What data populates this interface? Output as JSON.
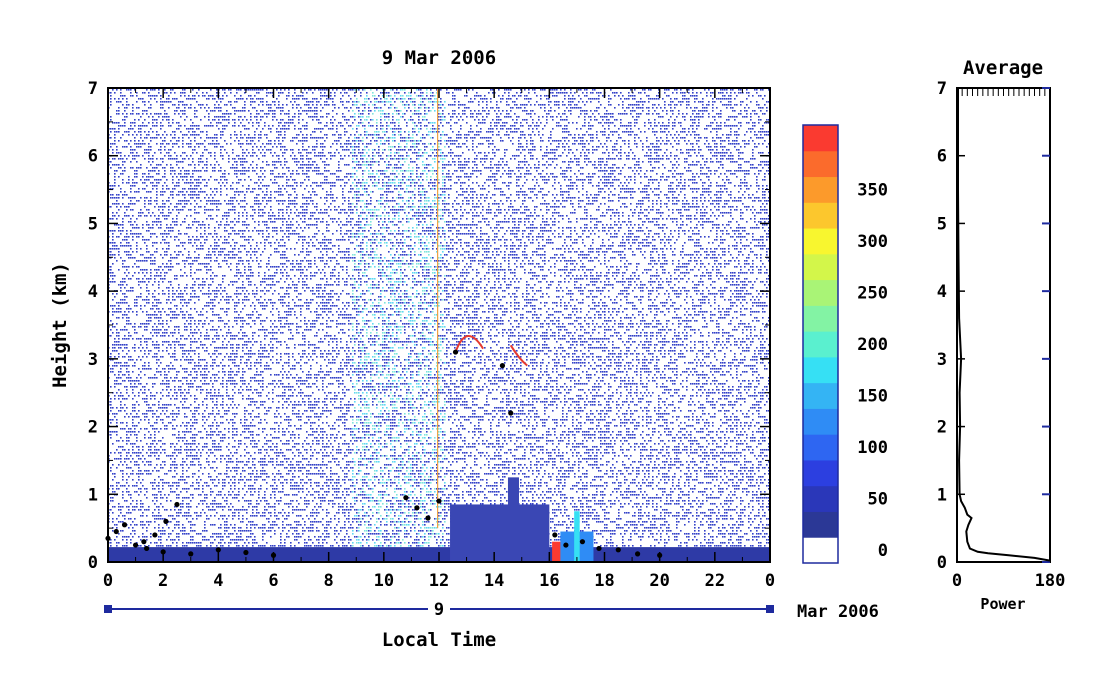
{
  "chart_data": [
    {
      "type": "heatmap",
      "title": "9 Mar 2006",
      "xlabel": "Local Time",
      "ylabel": "Height (km)",
      "xlim": [
        0,
        24
      ],
      "ylim": [
        0,
        7
      ],
      "x_ticks": [
        "0",
        "2",
        "4",
        "6",
        "8",
        "10",
        "12",
        "14",
        "16",
        "18",
        "20",
        "22",
        "0"
      ],
      "y_ticks": [
        "0",
        "1",
        "2",
        "3",
        "4",
        "5",
        "6",
        "7"
      ],
      "date_axis": {
        "day_label": "9",
        "month_label": "Mar 2006"
      },
      "colorbar": {
        "ticks": [
          "0",
          "50",
          "100",
          "150",
          "200",
          "250",
          "300",
          "350"
        ],
        "colors": [
          "#ffffff",
          "#2b3896",
          "#2a37b9",
          "#2c3fe0",
          "#2e66f2",
          "#2f8cf5",
          "#34b4f4",
          "#36e0f4",
          "#5af0cf",
          "#83f3a4",
          "#a9f476",
          "#d3f64a",
          "#f8f62f",
          "#fcc72d",
          "#fc9a2b",
          "#fb6b2c",
          "#fa3a30"
        ]
      },
      "black_trace": [
        [
          0.0,
          0.35
        ],
        [
          0.3,
          0.45
        ],
        [
          0.6,
          0.55
        ],
        [
          1.0,
          0.25
        ],
        [
          1.3,
          0.3
        ],
        [
          1.7,
          0.4
        ],
        [
          2.1,
          0.6
        ],
        [
          2.5,
          0.85
        ],
        [
          1.4,
          0.2
        ],
        [
          2.0,
          0.15
        ],
        [
          3.0,
          0.12
        ],
        [
          4.0,
          0.18
        ],
        [
          5.0,
          0.14
        ],
        [
          6.0,
          0.1
        ],
        [
          10.8,
          0.95
        ],
        [
          11.2,
          0.8
        ],
        [
          11.6,
          0.65
        ],
        [
          12.0,
          0.9
        ],
        [
          12.6,
          3.1
        ],
        [
          14.3,
          2.9
        ],
        [
          14.6,
          2.2
        ],
        [
          16.2,
          0.4
        ],
        [
          16.6,
          0.25
        ],
        [
          17.2,
          0.3
        ],
        [
          17.8,
          0.2
        ],
        [
          18.5,
          0.18
        ],
        [
          19.2,
          0.12
        ],
        [
          20.0,
          0.1
        ]
      ]
    },
    {
      "type": "line",
      "title": "Average",
      "xlabel": "Power",
      "xlim": [
        0,
        180
      ],
      "ylim": [
        0,
        7
      ],
      "x_ticks": [
        "0",
        "180"
      ],
      "y_ticks": [
        "0",
        "1",
        "2",
        "3",
        "4",
        "5",
        "6",
        "7"
      ],
      "profile": [
        [
          180,
          0.02
        ],
        [
          150,
          0.06
        ],
        [
          100,
          0.1
        ],
        [
          60,
          0.13
        ],
        [
          40,
          0.15
        ],
        [
          25,
          0.2
        ],
        [
          20,
          0.3
        ],
        [
          18,
          0.45
        ],
        [
          22,
          0.55
        ],
        [
          28,
          0.65
        ],
        [
          20,
          0.7
        ],
        [
          15,
          0.8
        ],
        [
          8,
          0.9
        ],
        [
          5,
          1.0
        ],
        [
          4,
          1.5
        ],
        [
          6,
          2.0
        ],
        [
          5,
          2.5
        ],
        [
          8,
          3.0
        ],
        [
          6,
          3.3
        ],
        [
          4,
          3.6
        ],
        [
          3,
          4.5
        ],
        [
          2,
          5.5
        ],
        [
          2,
          6.5
        ],
        [
          2,
          7.0
        ]
      ]
    }
  ]
}
